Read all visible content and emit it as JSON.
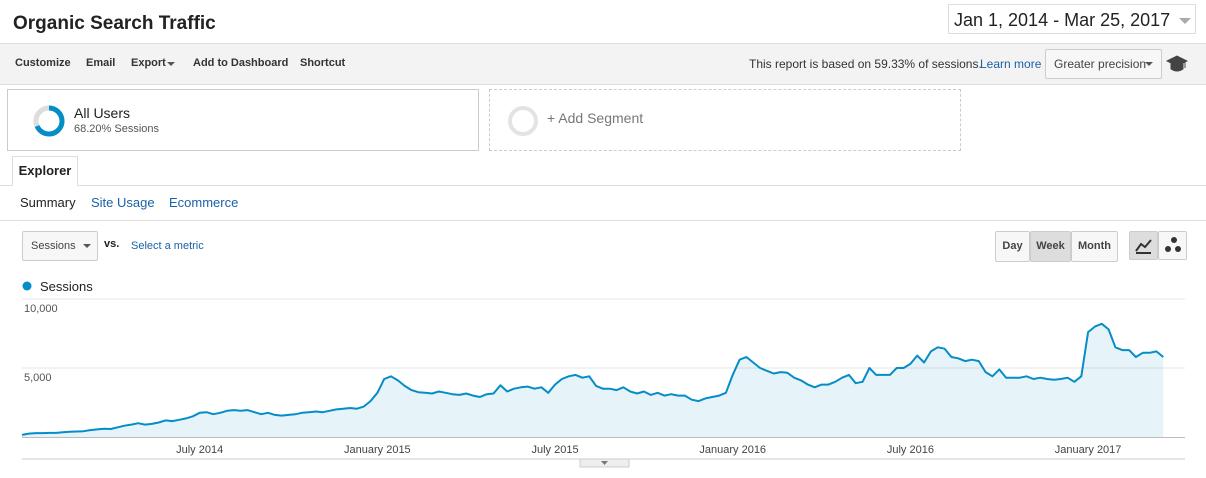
{
  "header": {
    "title": "Organic Search Traffic",
    "date_range": "Jan 1, 2014 - Mar 25, 2017"
  },
  "toolbar": {
    "items": [
      "Customize",
      "Email",
      "Export",
      "Add to Dashboard",
      "Shortcut"
    ],
    "sampling_note": "This report is based on 59.33% of sessions.",
    "learn_more": "Learn more",
    "precision": "Greater precision"
  },
  "segments": {
    "active": {
      "name": "All Users",
      "detail": "68.20% Sessions"
    },
    "add": "+ Add Segment"
  },
  "tabs": {
    "main": "Explorer",
    "sub": [
      "Summary",
      "Site Usage",
      "Ecommerce"
    ]
  },
  "controls": {
    "metric": "Sessions",
    "vs": "vs.",
    "select_metric": "Select a metric",
    "granularity": [
      "Day",
      "Week",
      "Month"
    ]
  },
  "chart_data": {
    "type": "line",
    "categories": [
      null,
      null,
      null,
      null,
      null,
      null,
      null,
      null,
      null,
      null,
      null,
      null,
      null,
      null,
      null,
      null,
      null,
      null,
      null,
      null,
      null,
      null,
      null,
      null,
      null,
      null,
      "July 2014",
      null,
      null,
      null,
      null,
      null,
      null,
      null,
      null,
      null,
      null,
      null,
      null,
      null,
      null,
      null,
      null,
      null,
      null,
      null,
      null,
      null,
      null,
      null,
      null,
      null,
      "January 2015",
      null,
      null,
      null,
      null,
      null,
      null,
      null,
      null,
      null,
      null,
      null,
      null,
      null,
      null,
      null,
      null,
      null,
      null,
      null,
      null,
      null,
      null,
      null,
      null,
      null,
      "July 2015",
      null,
      null,
      null,
      null,
      null,
      null,
      null,
      null,
      null,
      null,
      null,
      null,
      null,
      null,
      null,
      null,
      null,
      null,
      null,
      null,
      null,
      null,
      null,
      null,
      null,
      "January 2016",
      null,
      null,
      null,
      null,
      null,
      null,
      null,
      null,
      null,
      null,
      null,
      null,
      null,
      null,
      null,
      null,
      null,
      null,
      null,
      null,
      null,
      null,
      null,
      null,
      null,
      "July 2016",
      null,
      null,
      null,
      null,
      null,
      null,
      null,
      null,
      null,
      null,
      null,
      null,
      null,
      null,
      null,
      null,
      null,
      null,
      null,
      null,
      null,
      null,
      null,
      null,
      null,
      "January 2017",
      null,
      null,
      null,
      null,
      null,
      null,
      null,
      null,
      null,
      null,
      null
    ],
    "series": [
      {
        "name": "Sessions",
        "color": "#058dc7",
        "values": [
          150,
          250,
          280,
          280,
          300,
          300,
          350,
          380,
          400,
          420,
          500,
          550,
          600,
          580,
          700,
          820,
          900,
          1000,
          900,
          950,
          1050,
          1200,
          1150,
          1250,
          1350,
          1500,
          1750,
          1800,
          1650,
          1750,
          1900,
          1950,
          1900,
          1950,
          1800,
          1650,
          1750,
          1600,
          1550,
          1600,
          1650,
          1750,
          1800,
          1850,
          1800,
          1900,
          2000,
          2050,
          2100,
          2050,
          2200,
          2600,
          3200,
          4200,
          4400,
          4100,
          3700,
          3400,
          3250,
          3200,
          3150,
          3300,
          3200,
          3100,
          3050,
          3150,
          3000,
          2900,
          3100,
          3150,
          3750,
          3300,
          3500,
          3600,
          3650,
          3500,
          3600,
          3200,
          3800,
          4200,
          4400,
          4500,
          4300,
          4400,
          3700,
          3500,
          3500,
          3400,
          3600,
          3300,
          3150,
          3300,
          3050,
          3200,
          3000,
          3100,
          3000,
          3000,
          2700,
          2600,
          2800,
          2900,
          3000,
          3200,
          4500,
          5600,
          5800,
          5400,
          5000,
          4800,
          4600,
          4700,
          4650,
          4300,
          4100,
          3800,
          3600,
          3800,
          3800,
          4000,
          4300,
          4500,
          3900,
          4000,
          5000,
          4500,
          4500,
          4500,
          5000,
          5000,
          5300,
          5900,
          5400,
          6200,
          6500,
          6400,
          5800,
          5700,
          5500,
          5600,
          5500,
          4700,
          4400,
          4900,
          4300,
          4300,
          4300,
          4400,
          4200,
          4300,
          4200,
          4150,
          4200,
          4300,
          4000,
          4400,
          7600,
          8000,
          8200,
          7800,
          6500,
          6300,
          6300,
          5800,
          6100,
          6100,
          6200,
          5800
        ]
      }
    ],
    "ylim": [
      0,
      10000
    ],
    "yticks": [
      {
        "value": 5000,
        "label": "5,000"
      },
      {
        "value": 10000,
        "label": "10,000"
      }
    ],
    "grid": true
  }
}
